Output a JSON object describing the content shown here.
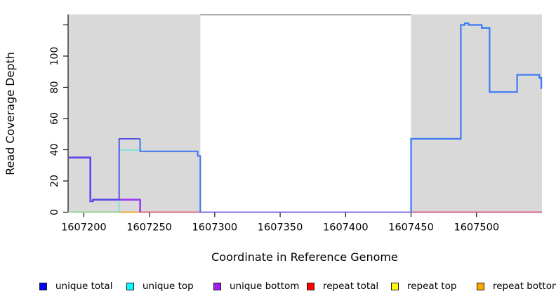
{
  "chart_data": {
    "type": "line",
    "subtype": "step",
    "title": "",
    "xlabel": "Coordinate in Reference Genome",
    "ylabel": "Read Coverage Depth",
    "xlim": [
      1607188,
      1607550
    ],
    "ylim": [
      0,
      126.5
    ],
    "grid": false,
    "legend_position": "bottom",
    "x_ticks": [
      1607200,
      1607250,
      1607300,
      1607350,
      1607400,
      1607450,
      1607500
    ],
    "x_tick_labels": [
      "1607200",
      "1607250",
      "1607300",
      "1607350",
      "1607400",
      "1607450",
      "1607500"
    ],
    "y_ticks": [
      0,
      20,
      40,
      60,
      80,
      100,
      120
    ],
    "y_tick_labels": [
      "0",
      "20",
      "40",
      "60",
      "80",
      "100",
      ""
    ],
    "shaded_regions": [
      {
        "x0": 1607188,
        "x1": 1607289
      },
      {
        "x0": 1607450,
        "x1": 1607550
      }
    ],
    "series": [
      {
        "name": "unique total",
        "color": "#0000FF",
        "step_points": [
          [
            1607188,
            35
          ],
          [
            1607205,
            7
          ],
          [
            1607207,
            8
          ],
          [
            1607227,
            47
          ],
          [
            1607243,
            39
          ],
          [
            1607287,
            36
          ],
          [
            1607289,
            0
          ],
          [
            1607450,
            47
          ],
          [
            1607488,
            120
          ],
          [
            1607491,
            121
          ],
          [
            1607494,
            120
          ],
          [
            1607504,
            118
          ],
          [
            1607510,
            77
          ],
          [
            1607531,
            88
          ],
          [
            1607548,
            86
          ],
          [
            1607549,
            79
          ]
        ]
      },
      {
        "name": "unique top",
        "color": "#00FFFF",
        "step_points": [
          [
            1607188,
            0
          ],
          [
            1607227,
            40
          ],
          [
            1607243,
            39
          ],
          [
            1607287,
            36
          ],
          [
            1607289,
            0
          ],
          [
            1607450,
            47
          ],
          [
            1607488,
            120
          ],
          [
            1607491,
            121
          ],
          [
            1607494,
            120
          ],
          [
            1607504,
            118
          ],
          [
            1607510,
            77
          ],
          [
            1607531,
            88
          ],
          [
            1607548,
            86
          ],
          [
            1607549,
            79
          ]
        ]
      },
      {
        "name": "unique bottom",
        "color": "#A020F0",
        "step_points": [
          [
            1607188,
            35
          ],
          [
            1607205,
            7
          ],
          [
            1607207,
            8
          ],
          [
            1607243,
            0
          ]
        ]
      },
      {
        "name": "repeat total",
        "color": "#FF0000",
        "step_points": [
          [
            1607188,
            0
          ]
        ]
      },
      {
        "name": "repeat top",
        "color": "#FFFF00",
        "step_points": [
          [
            1607188,
            0
          ]
        ]
      },
      {
        "name": "repeat bottom",
        "color": "#FFA500",
        "step_points": [
          [
            1607188,
            0
          ]
        ]
      }
    ],
    "drawn_paths": [
      {
        "name": "unique-bottom-visible",
        "color": "#9B3CF2",
        "width": 2.6,
        "points": [
          [
            1607188,
            35
          ],
          [
            1607205,
            35
          ],
          [
            1607205,
            7
          ],
          [
            1607207,
            7
          ],
          [
            1607207,
            8
          ],
          [
            1607243,
            8
          ],
          [
            1607243,
            0
          ]
        ]
      },
      {
        "name": "unique-top-visible",
        "color": "#72E2DC",
        "width": 1.6,
        "points": [
          [
            1607227,
            0
          ],
          [
            1607227,
            39.8
          ],
          [
            1607243,
            39.8
          ]
        ]
      },
      {
        "name": "unique-total-left",
        "color": "#4B49E6",
        "width": 1.8,
        "points": [
          [
            1607188,
            35
          ],
          [
            1607205,
            35
          ],
          [
            1607205,
            7
          ],
          [
            1607207,
            7
          ],
          [
            1607207,
            8
          ],
          [
            1607227,
            8
          ],
          [
            1607227,
            47
          ],
          [
            1607243,
            47
          ]
        ]
      },
      {
        "name": "unique-total-mid",
        "color": "#3C74F0",
        "width": 2.0,
        "points": [
          [
            1607243,
            47
          ],
          [
            1607243,
            39
          ],
          [
            1607287,
            39
          ],
          [
            1607287,
            36
          ],
          [
            1607289,
            36
          ],
          [
            1607289,
            0
          ]
        ]
      },
      {
        "name": "unique-total-right",
        "color": "#3C79F5",
        "width": 2.2,
        "points": [
          [
            1607450,
            0
          ],
          [
            1607450,
            47
          ],
          [
            1607488,
            47
          ],
          [
            1607488,
            120
          ],
          [
            1607491,
            120
          ],
          [
            1607491,
            121
          ],
          [
            1607494,
            121
          ],
          [
            1607494,
            120
          ],
          [
            1607504,
            120
          ],
          [
            1607504,
            118
          ],
          [
            1607510,
            118
          ],
          [
            1607510,
            77
          ],
          [
            1607531,
            77
          ],
          [
            1607531,
            88
          ],
          [
            1607548,
            88
          ],
          [
            1607548,
            86
          ],
          [
            1607549.5,
            86
          ],
          [
            1607549.5,
            79
          ]
        ]
      }
    ],
    "baseline_segments": [
      {
        "x0": 1607188,
        "x1": 1607227,
        "color": "#95D795"
      },
      {
        "x0": 1607227,
        "x1": 1607243,
        "color": "#F5A72B"
      },
      {
        "x0": 1607243,
        "x1": 1607289,
        "color": "#E0607E"
      },
      {
        "x0": 1607289,
        "x1": 1607450,
        "color": "#7468EE"
      },
      {
        "x0": 1607450,
        "x1": 1607550,
        "color": "#DB5781"
      }
    ],
    "colors": {
      "background": "#FFFFFF",
      "region_fill": "#D9D9D9",
      "axis": "#111111",
      "tick": "#111111",
      "top_border": "#8E8E8E",
      "label": "#000000"
    },
    "legend": [
      {
        "label": "unique total",
        "color": "#0000FF"
      },
      {
        "label": "unique top",
        "color": "#00FFFF"
      },
      {
        "label": "unique bottom",
        "color": "#A020F0"
      },
      {
        "label": "repeat total",
        "color": "#FF0000"
      },
      {
        "label": "repeat top",
        "color": "#FFFF00"
      },
      {
        "label": "repeat bottom",
        "color": "#FFA500"
      }
    ]
  }
}
